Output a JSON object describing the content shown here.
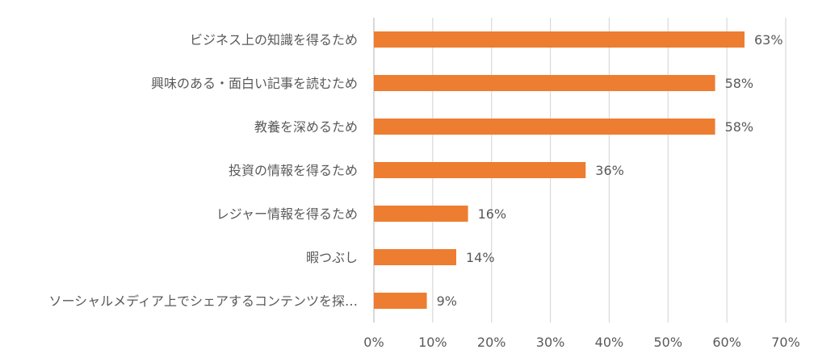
{
  "chart_data": {
    "type": "bar",
    "orientation": "horizontal",
    "categories": [
      "ビジネス上の知識を得るため",
      "興味のある・面白い記事を読むため",
      "教養を深めるため",
      "投資の情報を得るため",
      "レジャー情報を得るため",
      "暇つぶし",
      "ソーシャルメディア上でシェアするコンテンツを探…"
    ],
    "values": [
      63,
      58,
      58,
      36,
      16,
      14,
      9
    ],
    "value_labels": [
      "63%",
      "58%",
      "58%",
      "36%",
      "16%",
      "14%",
      "9%"
    ],
    "xlim": [
      0,
      70
    ],
    "ticks": [
      0,
      10,
      20,
      30,
      40,
      50,
      60,
      70
    ],
    "tick_labels": [
      "0%",
      "10%",
      "20%",
      "30%",
      "40%",
      "50%",
      "60%",
      "70%"
    ],
    "bar_color": "#ED7D31",
    "grid": true,
    "legend": "none",
    "title": "",
    "xlabel": "",
    "ylabel": ""
  }
}
